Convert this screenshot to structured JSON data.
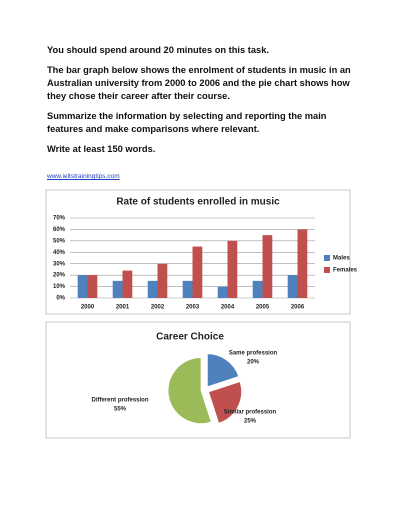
{
  "paragraphs": [
    "You should spend around 20 minutes on this task.",
    "The bar graph below shows the enrolment of students in music in an Australian university from 2000 to 2006 and the pie chart shows how they chose their career after their course.",
    "Summarize the information by selecting and reporting the main features and make comparisons where relevant.",
    "Write at least 150 words."
  ],
  "link": "www.ieltstrainingtips.com",
  "chart_data": [
    {
      "type": "bar",
      "title": "Rate of students enrolled in music",
      "categories": [
        "2000",
        "2001",
        "2002",
        "2003",
        "2004",
        "2005",
        "2006"
      ],
      "series": [
        {
          "name": "Males",
          "color": "#4f81bd",
          "values": [
            20,
            15,
            15,
            15,
            10,
            15,
            20
          ]
        },
        {
          "name": "Females",
          "color": "#c0504d",
          "values": [
            20,
            24,
            30,
            45,
            50,
            55,
            60
          ]
        }
      ],
      "ylim": [
        0,
        70
      ],
      "yticks": [
        {
          "value": 0,
          "label": "0%"
        },
        {
          "value": 10,
          "label": "10%"
        },
        {
          "value": 20,
          "label": "20%"
        },
        {
          "value": 30,
          "label": "30%"
        },
        {
          "value": 40,
          "label": "40%"
        },
        {
          "value": 50,
          "label": "50%"
        },
        {
          "value": 60,
          "label": "60%"
        },
        {
          "value": 70,
          "label": "70%"
        }
      ],
      "grid": true,
      "legend": "right"
    },
    {
      "type": "pie",
      "title": "Career Choice",
      "categories": [
        "Same profession",
        "Similar profession",
        "Different profession"
      ],
      "values": [
        20,
        25,
        55
      ],
      "value_labels": [
        "20%",
        "25%",
        "55%"
      ],
      "colors": [
        "#4f81bd",
        "#c0504d",
        "#9bbb59"
      ]
    }
  ]
}
